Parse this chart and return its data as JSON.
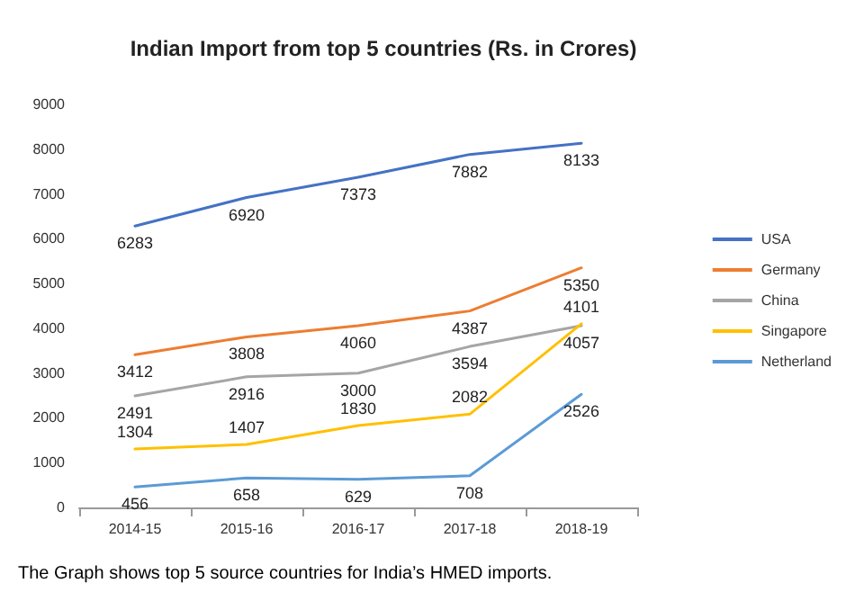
{
  "chart_data": {
    "type": "line",
    "title": "Indian Import from top 5 countries (Rs. in Crores)",
    "categories": [
      "2014-15",
      "2015-16",
      "2016-17",
      "2017-18",
      "2018-19"
    ],
    "series": [
      {
        "name": "USA",
        "color": "#4472c4",
        "values": [
          6283,
          6920,
          7373,
          7882,
          8133
        ]
      },
      {
        "name": "Germany",
        "color": "#ed7d31",
        "values": [
          3412,
          3808,
          4060,
          4387,
          5350
        ]
      },
      {
        "name": "China",
        "color": "#a5a5a5",
        "values": [
          2491,
          2916,
          3000,
          3594,
          4057
        ]
      },
      {
        "name": "Singapore",
        "color": "#ffc000",
        "values": [
          1304,
          1407,
          1830,
          2082,
          4101
        ]
      },
      {
        "name": "Netherland",
        "color": "#5b9bd5",
        "values": [
          456,
          658,
          629,
          708,
          2526
        ]
      }
    ],
    "ylim": [
      0,
      9000
    ],
    "yticks": [
      0,
      1000,
      2000,
      3000,
      4000,
      5000,
      6000,
      7000,
      8000,
      9000
    ],
    "grid": false,
    "legend": "right",
    "marker": "none",
    "line_style": "solid",
    "data_labels": true,
    "annotations": [
      "The Graph shows top 5 source countries for India’s HMED imports."
    ]
  }
}
